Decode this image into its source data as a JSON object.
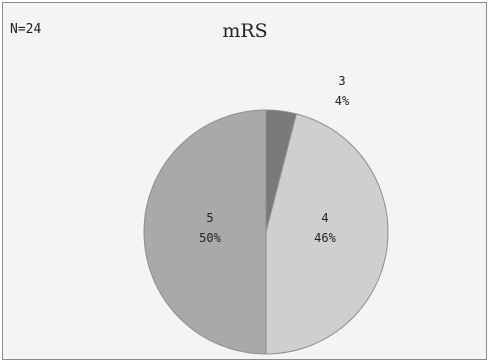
{
  "chart_data": {
    "type": "pie",
    "title": "mRS",
    "annotation": "N=24",
    "slices": [
      {
        "category": "3",
        "percent_label": "4%",
        "value": 4,
        "color": "#7a7a7a"
      },
      {
        "category": "4",
        "percent_label": "46%",
        "value": 46,
        "color": "#cfcfcf"
      },
      {
        "category": "5",
        "percent_label": "50%",
        "value": 50,
        "color": "#a9a9a9"
      }
    ]
  }
}
